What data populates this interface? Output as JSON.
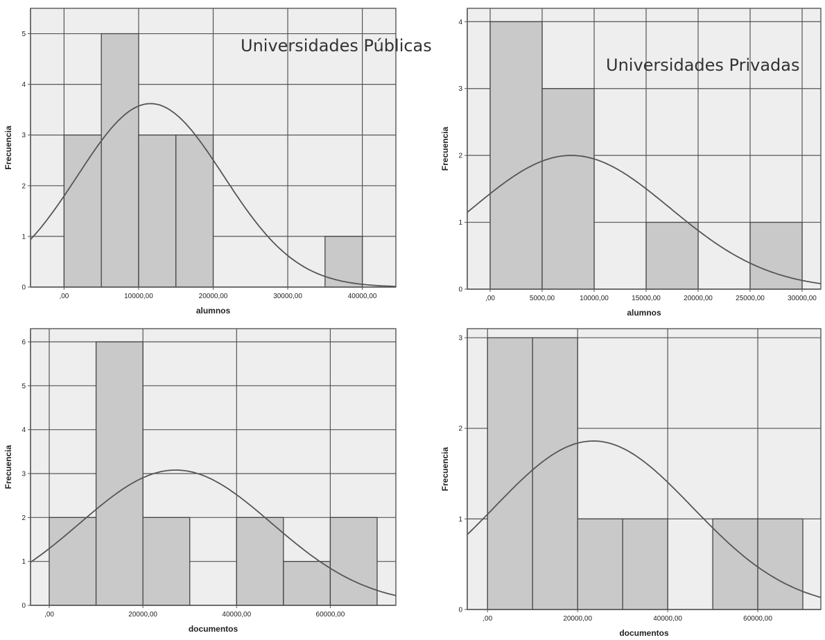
{
  "annotations": {
    "public": "Universidades Públicas",
    "private": "Universidades Privadas"
  },
  "colors": {
    "plot_bg": "#eeeeee",
    "grid": "#555555",
    "bar_fill": "#c9c9c9",
    "bar_edge": "#444444",
    "curve": "#555555",
    "axis": "#555555",
    "text": "#222222"
  },
  "chart_data": [
    {
      "type": "bar",
      "group": "Universidades Públicas",
      "ylabel": "Frecuencia",
      "xlabel": "alumnos",
      "xlim": [
        -4500,
        44500
      ],
      "ylim": [
        0,
        5.5
      ],
      "xticks": [
        0,
        10000,
        20000,
        30000,
        40000
      ],
      "xtick_labels": [
        ",00",
        "10000,00",
        "20000,00",
        "30000,00",
        "40000,00"
      ],
      "yticks": [
        0,
        1,
        2,
        3,
        4,
        5
      ],
      "ytick_labels": [
        "0",
        "1",
        "2",
        "3",
        "4",
        "5"
      ],
      "bins": [
        {
          "start": 0,
          "end": 5000,
          "count": 3
        },
        {
          "start": 5000,
          "end": 10000,
          "count": 5
        },
        {
          "start": 10000,
          "end": 15000,
          "count": 3
        },
        {
          "start": 15000,
          "end": 20000,
          "count": 3
        },
        {
          "start": 35000,
          "end": 40000,
          "count": 1
        }
      ],
      "normal_curve": {
        "mean": 11600,
        "sd": 9800,
        "peak": 3.62
      },
      "grid": true
    },
    {
      "type": "bar",
      "group": "Universidades Privadas",
      "ylabel": "Frecuencia",
      "xlabel": "alumnos",
      "xlim": [
        -2200,
        31800
      ],
      "ylim": [
        0,
        4.2
      ],
      "xticks": [
        0,
        5000,
        10000,
        15000,
        20000,
        25000,
        30000
      ],
      "xtick_labels": [
        ",00",
        "5000,00",
        "10000,00",
        "15000,00",
        "20000,00",
        "25000,00",
        "30000,00"
      ],
      "yticks": [
        0,
        1,
        2,
        3,
        4
      ],
      "ytick_labels": [
        "0",
        "1",
        "2",
        "3",
        "4"
      ],
      "bins": [
        {
          "start": 0,
          "end": 5000,
          "count": 4
        },
        {
          "start": 5000,
          "end": 10000,
          "count": 3
        },
        {
          "start": 15000,
          "end": 20000,
          "count": 1
        },
        {
          "start": 25000,
          "end": 30000,
          "count": 1
        }
      ],
      "normal_curve": {
        "mean": 7800,
        "sd": 9500,
        "peak": 2.0
      },
      "grid": true
    },
    {
      "type": "bar",
      "group": "Universidades Públicas",
      "ylabel": "Frecuencia",
      "xlabel": "documentos",
      "xlim": [
        -4000,
        74000
      ],
      "ylim": [
        0,
        6.3
      ],
      "xticks": [
        0,
        20000,
        40000,
        60000
      ],
      "xtick_labels": [
        ",00",
        "20000,00",
        "40000,00",
        "60000,00"
      ],
      "yticks": [
        0,
        1,
        2,
        3,
        4,
        5,
        6
      ],
      "ytick_labels": [
        "0",
        "1",
        "2",
        "3",
        "4",
        "5",
        "6"
      ],
      "bins": [
        {
          "start": 0,
          "end": 10000,
          "count": 2
        },
        {
          "start": 10000,
          "end": 20000,
          "count": 6
        },
        {
          "start": 20000,
          "end": 30000,
          "count": 2
        },
        {
          "start": 40000,
          "end": 50000,
          "count": 2
        },
        {
          "start": 50000,
          "end": 60000,
          "count": 1
        },
        {
          "start": 60000,
          "end": 70000,
          "count": 2
        }
      ],
      "normal_curve": {
        "mean": 27000,
        "sd": 20500,
        "peak": 3.08
      },
      "grid": true
    },
    {
      "type": "bar",
      "group": "Universidades Privadas",
      "ylabel": "Frecuencia",
      "xlabel": "documentos",
      "xlim": [
        -4500,
        74000
      ],
      "ylim": [
        0,
        3.1
      ],
      "xticks": [
        0,
        20000,
        40000,
        60000
      ],
      "xtick_labels": [
        ",00",
        "20000,00",
        "40000,00",
        "60000,00"
      ],
      "yticks": [
        0,
        1,
        2,
        3
      ],
      "ytick_labels": [
        "0",
        "1",
        "2",
        "3"
      ],
      "bins": [
        {
          "start": 0,
          "end": 10000,
          "count": 3
        },
        {
          "start": 10000,
          "end": 20000,
          "count": 3
        },
        {
          "start": 20000,
          "end": 30000,
          "count": 1
        },
        {
          "start": 30000,
          "end": 40000,
          "count": 1
        },
        {
          "start": 50000,
          "end": 60000,
          "count": 1
        },
        {
          "start": 60000,
          "end": 70000,
          "count": 1
        }
      ],
      "normal_curve": {
        "mean": 23500,
        "sd": 22000,
        "peak": 1.86
      },
      "grid": true
    }
  ]
}
